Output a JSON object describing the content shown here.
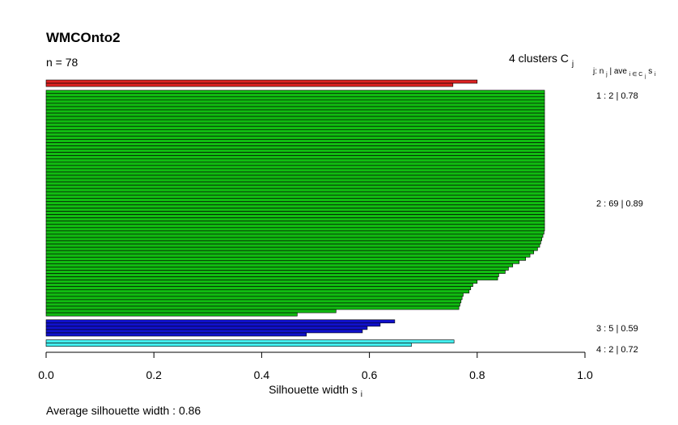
{
  "chart_data": {
    "type": "bar",
    "orientation": "horizontal",
    "title": "WMCOnto2",
    "n_label": "n = 78",
    "clusters_label": "4  clusters  C",
    "clusters_sub": "j",
    "header_label": "j:  n",
    "header_rest": "  | ave",
    "header_s": "  s",
    "header_sub_j": "j",
    "header_sub_i": "i ∈ C",
    "header_sub_cj": "j",
    "header_sub_si": "i",
    "xlabel": "Silhouette width s",
    "xlabel_sub": "i",
    "xlim": [
      0,
      1
    ],
    "xticks": [
      "0.0",
      "0.2",
      "0.4",
      "0.6",
      "0.8",
      "1.0"
    ],
    "average_label": "Average silhouette width :  0.86",
    "clusters": [
      {
        "label": "1 :  2 | 0.78",
        "color": "#dd2222",
        "values": [
          0.8,
          0.755
        ]
      },
      {
        "label": "2 :  69 | 0.89",
        "color": "#11bb11",
        "values": [
          0.925,
          0.925,
          0.925,
          0.925,
          0.925,
          0.925,
          0.925,
          0.925,
          0.925,
          0.925,
          0.925,
          0.925,
          0.925,
          0.925,
          0.925,
          0.925,
          0.925,
          0.925,
          0.925,
          0.925,
          0.925,
          0.925,
          0.925,
          0.925,
          0.925,
          0.925,
          0.925,
          0.925,
          0.925,
          0.925,
          0.925,
          0.925,
          0.925,
          0.925,
          0.925,
          0.925,
          0.925,
          0.925,
          0.925,
          0.925,
          0.925,
          0.925,
          0.925,
          0.924,
          0.922,
          0.92,
          0.918,
          0.916,
          0.912,
          0.905,
          0.898,
          0.89,
          0.878,
          0.866,
          0.858,
          0.852,
          0.84,
          0.838,
          0.8,
          0.792,
          0.788,
          0.785,
          0.774,
          0.772,
          0.77,
          0.768,
          0.766,
          0.538,
          0.466
        ]
      },
      {
        "label": "3 :  5 | 0.59",
        "color": "#1111cc",
        "values": [
          0.647,
          0.62,
          0.596,
          0.587,
          0.483
        ]
      },
      {
        "label": "4 :  2 | 0.72",
        "color": "#44eeee",
        "values": [
          0.757,
          0.678
        ]
      }
    ]
  }
}
